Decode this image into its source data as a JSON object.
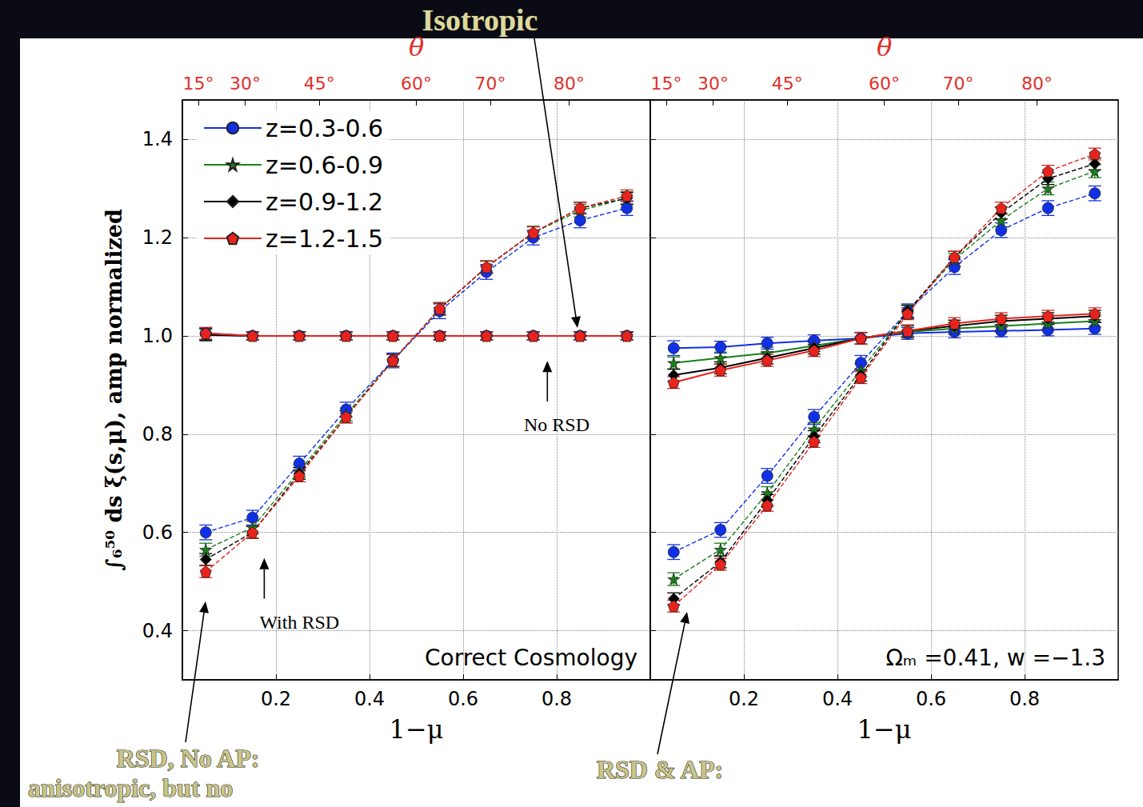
{
  "chart_data": [
    {
      "type": "line",
      "title": "Correct Cosmology",
      "xlabel": "1−μ",
      "ylabel": "∫₆⁵⁰ ds ξ(s,μ), amp normalized",
      "x2label": "θ",
      "x": [
        0.05,
        0.15,
        0.25,
        0.35,
        0.45,
        0.55,
        0.65,
        0.75,
        0.85,
        0.95
      ],
      "xlim": [
        0,
        1
      ],
      "xticks": [
        0.2,
        0.4,
        0.6,
        0.8
      ],
      "x2ticks": [
        {
          "value": 0.0341,
          "label": "15°"
        },
        {
          "value": 0.134,
          "label": "30°"
        },
        {
          "value": 0.2929,
          "label": "45°"
        },
        {
          "value": 0.5,
          "label": "60°"
        },
        {
          "value": 0.658,
          "label": "70°"
        },
        {
          "value": 0.8264,
          "label": "80°"
        }
      ],
      "ylim": [
        0.3,
        1.48
      ],
      "yticks": [
        0.4,
        0.6,
        0.8,
        {
          "value": 1,
          "label": "1.0"
        },
        1.2,
        1.4
      ],
      "grid": true,
      "legend": "upper left",
      "annotations": [
        "With RSD",
        "No RSD"
      ],
      "series": [
        {
          "name": "z=0.3-0.6",
          "color": "#1030e8",
          "marker": "circle",
          "line_style": "solid",
          "values": [
            1.005,
            1,
            1,
            1,
            1,
            1,
            1,
            1,
            1,
            1
          ],
          "errors": [
            0.012,
            0.008,
            0.008,
            0.008,
            0.008,
            0.008,
            0.008,
            0.008,
            0.008,
            0.008
          ]
        },
        {
          "name": "z=0.6-0.9",
          "color": "#1a7f1a",
          "marker": "star",
          "line_style": "solid",
          "values": [
            1.003,
            1,
            1,
            1,
            1,
            1,
            1,
            1,
            1,
            1
          ],
          "errors": [
            0.012,
            0.008,
            0.008,
            0.008,
            0.008,
            0.008,
            0.008,
            0.008,
            0.008,
            0.008
          ]
        },
        {
          "name": "z=0.9-1.2",
          "color": "#000000",
          "marker": "diamond",
          "line_style": "solid",
          "values": [
            1.002,
            1,
            1,
            1,
            1,
            1,
            1,
            1,
            1,
            1
          ],
          "errors": [
            0.012,
            0.008,
            0.008,
            0.008,
            0.008,
            0.008,
            0.008,
            0.008,
            0.008,
            0.008
          ]
        },
        {
          "name": "z=1.2-1.5",
          "color": "#e8231c",
          "marker": "pentagon",
          "line_style": "solid",
          "values": [
            1.005,
            1,
            1,
            1,
            1,
            1,
            1,
            1,
            1,
            1
          ],
          "errors": [
            0.012,
            0.008,
            0.008,
            0.008,
            0.008,
            0.008,
            0.008,
            0.008,
            0.008,
            0.008
          ]
        },
        {
          "name": "z=0.3-0.6",
          "color": "#1030e8",
          "marker": "circle",
          "line_style": "dashed",
          "values": [
            0.6,
            0.63,
            0.74,
            0.85,
            0.95,
            1.05,
            1.13,
            1.2,
            1.235,
            1.26
          ],
          "errors": [
            0.015,
            0.015,
            0.015,
            0.015,
            0.015,
            0.015,
            0.015,
            0.015,
            0.015,
            0.015
          ]
        },
        {
          "name": "z=0.6-0.9",
          "color": "#1a7f1a",
          "marker": "star",
          "line_style": "dashed",
          "values": [
            0.565,
            0.61,
            0.725,
            0.84,
            0.95,
            1.055,
            1.14,
            1.21,
            1.255,
            1.28
          ],
          "errors": [
            0.013,
            0.013,
            0.013,
            0.013,
            0.013,
            0.013,
            0.013,
            0.013,
            0.013,
            0.013
          ]
        },
        {
          "name": "z=0.9-1.2",
          "color": "#000000",
          "marker": "diamond",
          "line_style": "dashed",
          "values": [
            0.545,
            0.6,
            0.72,
            0.835,
            0.95,
            1.055,
            1.14,
            1.21,
            1.26,
            1.28
          ],
          "errors": [
            0.012,
            0.012,
            0.012,
            0.012,
            0.012,
            0.012,
            0.012,
            0.012,
            0.012,
            0.012
          ]
        },
        {
          "name": "z=1.2-1.5",
          "color": "#e8231c",
          "marker": "pentagon",
          "line_style": "dashed",
          "values": [
            0.52,
            0.6,
            0.715,
            0.835,
            0.95,
            1.055,
            1.14,
            1.21,
            1.26,
            1.285
          ],
          "errors": [
            0.012,
            0.012,
            0.012,
            0.012,
            0.012,
            0.012,
            0.012,
            0.012,
            0.012,
            0.012
          ]
        }
      ]
    },
    {
      "type": "line",
      "title": "Ωₘ =0.41, w =−1.3",
      "xlabel": "1−μ",
      "x2label": "θ",
      "x": [
        0.05,
        0.15,
        0.25,
        0.35,
        0.45,
        0.55,
        0.65,
        0.75,
        0.85,
        0.95
      ],
      "xlim": [
        0,
        1
      ],
      "xticks": [
        0.2,
        0.4,
        0.6,
        0.8
      ],
      "x2ticks": [
        {
          "value": 0.0341,
          "label": "15°"
        },
        {
          "value": 0.134,
          "label": "30°"
        },
        {
          "value": 0.2929,
          "label": "45°"
        },
        {
          "value": 0.5,
          "label": "60°"
        },
        {
          "value": 0.658,
          "label": "70°"
        },
        {
          "value": 0.8264,
          "label": "80°"
        }
      ],
      "ylim": [
        0.3,
        1.48
      ],
      "yticks": [
        0.4,
        0.6,
        0.8,
        {
          "value": 1,
          "label": "1.0"
        },
        1.2,
        1.4
      ],
      "grid": true,
      "tick_labels": "x",
      "series": [
        {
          "name": "z=0.3-0.6",
          "color": "#1030e8",
          "marker": "circle",
          "line_style": "solid",
          "values": [
            0.975,
            0.977,
            0.985,
            0.99,
            0.995,
            1.005,
            1.008,
            1.01,
            1.012,
            1.015
          ],
          "errors": [
            0.015,
            0.012,
            0.012,
            0.012,
            0.012,
            0.012,
            0.012,
            0.012,
            0.012,
            0.012
          ]
        },
        {
          "name": "z=0.6-0.9",
          "color": "#1a7f1a",
          "marker": "star",
          "line_style": "solid",
          "values": [
            0.945,
            0.955,
            0.965,
            0.98,
            0.995,
            1.008,
            1.015,
            1.02,
            1.025,
            1.03
          ],
          "errors": [
            0.012,
            0.012,
            0.012,
            0.012,
            0.012,
            0.012,
            0.012,
            0.012,
            0.012,
            0.012
          ]
        },
        {
          "name": "z=0.9-1.2",
          "color": "#000000",
          "marker": "diamond",
          "line_style": "solid",
          "values": [
            0.92,
            0.935,
            0.955,
            0.975,
            0.995,
            1.01,
            1.02,
            1.03,
            1.035,
            1.04
          ],
          "errors": [
            0.012,
            0.012,
            0.012,
            0.012,
            0.012,
            0.012,
            0.012,
            0.012,
            0.012,
            0.012
          ]
        },
        {
          "name": "z=1.2-1.5",
          "color": "#e8231c",
          "marker": "pentagon",
          "line_style": "solid",
          "values": [
            0.905,
            0.93,
            0.95,
            0.97,
            0.995,
            1.01,
            1.025,
            1.035,
            1.04,
            1.045
          ],
          "errors": [
            0.012,
            0.012,
            0.012,
            0.012,
            0.012,
            0.012,
            0.012,
            0.012,
            0.012,
            0.012
          ]
        },
        {
          "name": "z=0.3-0.6",
          "color": "#1030e8",
          "marker": "circle",
          "line_style": "dashed",
          "values": [
            0.56,
            0.605,
            0.715,
            0.835,
            0.945,
            1.05,
            1.14,
            1.215,
            1.26,
            1.29
          ],
          "errors": [
            0.015,
            0.015,
            0.015,
            0.015,
            0.015,
            0.015,
            0.015,
            0.015,
            0.015,
            0.015
          ]
        },
        {
          "name": "z=0.6-0.9",
          "color": "#1a7f1a",
          "marker": "star",
          "line_style": "dashed",
          "values": [
            0.505,
            0.565,
            0.68,
            0.81,
            0.93,
            1.05,
            1.155,
            1.235,
            1.3,
            1.335
          ],
          "errors": [
            0.013,
            0.013,
            0.013,
            0.013,
            0.013,
            0.013,
            0.013,
            0.013,
            0.013,
            0.013
          ]
        },
        {
          "name": "z=0.9-1.2",
          "color": "#000000",
          "marker": "diamond",
          "line_style": "dashed",
          "values": [
            0.465,
            0.54,
            0.665,
            0.795,
            0.92,
            1.05,
            1.16,
            1.25,
            1.32,
            1.35
          ],
          "errors": [
            0.012,
            0.012,
            0.012,
            0.012,
            0.012,
            0.012,
            0.012,
            0.012,
            0.012,
            0.012
          ]
        },
        {
          "name": "z=1.2-1.5",
          "color": "#e8231c",
          "marker": "pentagon",
          "line_style": "dashed",
          "values": [
            0.45,
            0.535,
            0.655,
            0.785,
            0.915,
            1.045,
            1.16,
            1.26,
            1.335,
            1.37
          ],
          "errors": [
            0.012,
            0.012,
            0.012,
            0.012,
            0.012,
            0.012,
            0.012,
            0.012,
            0.012,
            0.012
          ]
        }
      ]
    }
  ],
  "callouts": [
    "Isotropic",
    "RSD, No AP:",
    "anisotropic, but no",
    "RSD & AP:"
  ]
}
